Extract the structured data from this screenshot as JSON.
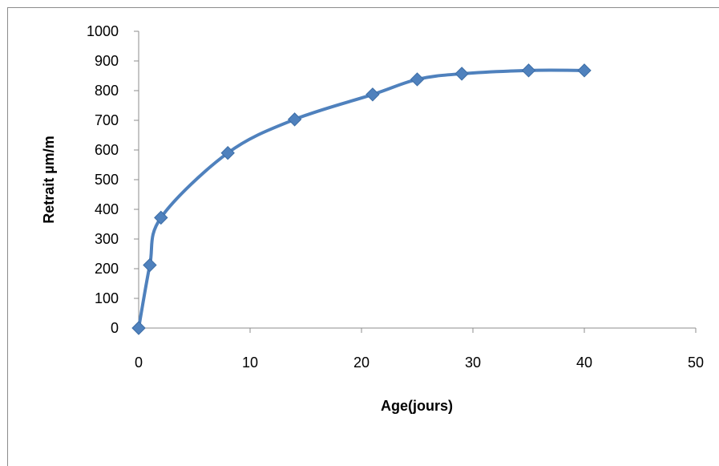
{
  "chart_data": {
    "type": "line",
    "title": "",
    "xlabel": "Age(jours)",
    "ylabel": "Retrait µm/m",
    "xlim": [
      0,
      50
    ],
    "ylim": [
      0,
      1000
    ],
    "x_ticks": [
      0,
      10,
      20,
      30,
      40,
      50
    ],
    "y_ticks": [
      0,
      100,
      200,
      300,
      400,
      500,
      600,
      700,
      800,
      900,
      1000
    ],
    "grid": false,
    "legend": "none",
    "smooth": true,
    "series": [
      {
        "color": "#4F81BD",
        "marker": "diamond",
        "points": [
          {
            "x": 0,
            "y": 0
          },
          {
            "x": 1,
            "y": 212
          },
          {
            "x": 2,
            "y": 372
          },
          {
            "x": 8,
            "y": 590
          },
          {
            "x": 14,
            "y": 703
          },
          {
            "x": 21,
            "y": 787
          },
          {
            "x": 25,
            "y": 838
          },
          {
            "x": 29,
            "y": 857
          },
          {
            "x": 35,
            "y": 868
          },
          {
            "x": 40,
            "y": 868
          }
        ]
      }
    ]
  }
}
